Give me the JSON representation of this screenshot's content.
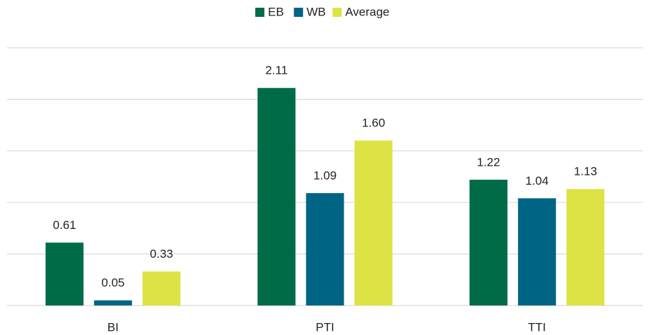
{
  "chart_data": {
    "type": "bar",
    "categories": [
      "BI",
      "PTI",
      "TTI"
    ],
    "series": [
      {
        "name": "EB",
        "color": "#006b47",
        "values": [
          0.61,
          2.11,
          1.22
        ],
        "value_labels": [
          "0.61",
          "2.11",
          "1.22"
        ]
      },
      {
        "name": "WB",
        "color": "#006485",
        "values": [
          0.05,
          1.09,
          1.04
        ],
        "value_labels": [
          "0.05",
          "1.09",
          "1.04"
        ]
      },
      {
        "name": "Average",
        "color": "#dde344",
        "values": [
          0.33,
          1.6,
          1.13
        ],
        "value_labels": [
          "0.33",
          "1.60",
          "1.13"
        ]
      }
    ],
    "ylim": [
      0,
      2.5
    ],
    "yticks": [
      0,
      0.5,
      1,
      1.5,
      2,
      2.5
    ],
    "grid": true,
    "legend": "top"
  }
}
